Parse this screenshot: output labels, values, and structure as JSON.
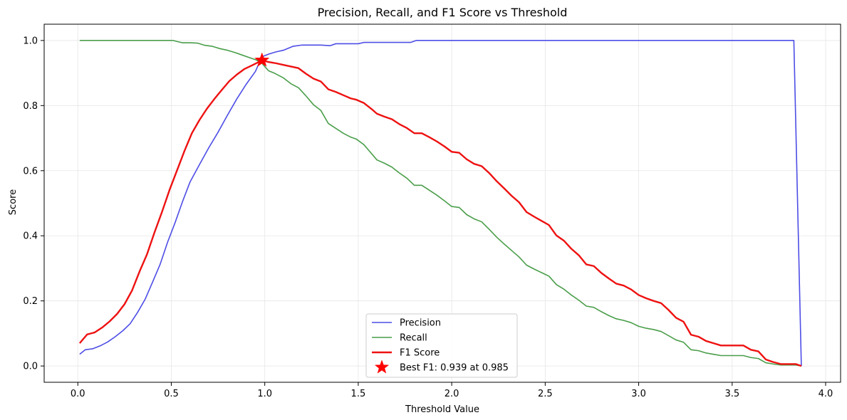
{
  "chart_data": {
    "type": "line",
    "title": "Precision, Recall, and F1 Score vs Threshold",
    "xlabel": "Threshold Value",
    "ylabel": "Score",
    "xlim": [
      -0.18,
      4.08
    ],
    "ylim": [
      -0.05,
      1.05
    ],
    "xticks": [
      {
        "value": 0.0,
        "label": "0.0"
      },
      {
        "value": 0.5,
        "label": "0.5"
      },
      {
        "value": 1.0,
        "label": "1.0"
      },
      {
        "value": 1.5,
        "label": "1.5"
      },
      {
        "value": 2.0,
        "label": "2.0"
      },
      {
        "value": 2.5,
        "label": "2.5"
      },
      {
        "value": 3.0,
        "label": "3.0"
      },
      {
        "value": 3.5,
        "label": "3.5"
      },
      {
        "value": 4.0,
        "label": "4.0"
      }
    ],
    "yticks": [
      {
        "value": 0.0,
        "label": "0.0"
      },
      {
        "value": 0.2,
        "label": "0.2"
      },
      {
        "value": 0.4,
        "label": "0.4"
      },
      {
        "value": 0.6,
        "label": "0.6"
      },
      {
        "value": 0.8,
        "label": "0.8"
      },
      {
        "value": 1.0,
        "label": "1.0"
      }
    ],
    "grid": true,
    "legend_position": "lower center",
    "series": [
      {
        "name": "Precision",
        "color": "#4d4de6",
        "linewidth": "thin",
        "points": [
          [
            0.01,
            0.036
          ],
          [
            0.04,
            0.05
          ],
          [
            0.08,
            0.053
          ],
          [
            0.12,
            0.062
          ],
          [
            0.16,
            0.074
          ],
          [
            0.2,
            0.09
          ],
          [
            0.24,
            0.108
          ],
          [
            0.28,
            0.13
          ],
          [
            0.32,
            0.165
          ],
          [
            0.36,
            0.205
          ],
          [
            0.4,
            0.258
          ],
          [
            0.44,
            0.312
          ],
          [
            0.48,
            0.38
          ],
          [
            0.52,
            0.44
          ],
          [
            0.56,
            0.505
          ],
          [
            0.6,
            0.565
          ],
          [
            0.65,
            0.618
          ],
          [
            0.7,
            0.67
          ],
          [
            0.75,
            0.718
          ],
          [
            0.8,
            0.77
          ],
          [
            0.85,
            0.82
          ],
          [
            0.9,
            0.865
          ],
          [
            0.95,
            0.905
          ],
          [
            0.985,
            0.95
          ],
          [
            1.02,
            0.958
          ],
          [
            1.06,
            0.965
          ],
          [
            1.1,
            0.97
          ],
          [
            1.15,
            0.982
          ],
          [
            1.2,
            0.986
          ],
          [
            1.3,
            0.986
          ],
          [
            1.35,
            0.984
          ],
          [
            1.38,
            0.99
          ],
          [
            1.45,
            0.99
          ],
          [
            1.5,
            0.99
          ],
          [
            1.53,
            0.994
          ],
          [
            1.6,
            0.994
          ],
          [
            1.78,
            0.994
          ],
          [
            1.81,
            1.0
          ],
          [
            2.0,
            1.0
          ],
          [
            2.5,
            1.0
          ],
          [
            3.0,
            1.0
          ],
          [
            3.5,
            1.0
          ],
          [
            3.83,
            1.0
          ],
          [
            3.87,
            0.0
          ]
        ]
      },
      {
        "name": "Recall",
        "color": "#4a9e4a",
        "linewidth": "thin",
        "points": [
          [
            0.01,
            1.0
          ],
          [
            0.3,
            1.0
          ],
          [
            0.51,
            1.0
          ],
          [
            0.53,
            0.997
          ],
          [
            0.56,
            0.993
          ],
          [
            0.6,
            0.993
          ],
          [
            0.64,
            0.992
          ],
          [
            0.68,
            0.985
          ],
          [
            0.72,
            0.982
          ],
          [
            0.76,
            0.975
          ],
          [
            0.8,
            0.97
          ],
          [
            0.84,
            0.963
          ],
          [
            0.88,
            0.955
          ],
          [
            0.92,
            0.947
          ],
          [
            0.955,
            0.94
          ],
          [
            0.985,
            0.93
          ],
          [
            1.0,
            0.92
          ],
          [
            1.02,
            0.907
          ],
          [
            1.05,
            0.9
          ],
          [
            1.09,
            0.888
          ],
          [
            1.1,
            0.885
          ],
          [
            1.14,
            0.867
          ],
          [
            1.18,
            0.855
          ],
          [
            1.22,
            0.83
          ],
          [
            1.26,
            0.803
          ],
          [
            1.3,
            0.785
          ],
          [
            1.34,
            0.745
          ],
          [
            1.38,
            0.73
          ],
          [
            1.42,
            0.715
          ],
          [
            1.46,
            0.703
          ],
          [
            1.49,
            0.697
          ],
          [
            1.53,
            0.68
          ],
          [
            1.56,
            0.66
          ],
          [
            1.6,
            0.633
          ],
          [
            1.64,
            0.623
          ],
          [
            1.68,
            0.611
          ],
          [
            1.72,
            0.593
          ],
          [
            1.76,
            0.577
          ],
          [
            1.8,
            0.555
          ],
          [
            1.84,
            0.555
          ],
          [
            1.88,
            0.54
          ],
          [
            1.92,
            0.525
          ],
          [
            1.96,
            0.508
          ],
          [
            2.0,
            0.49
          ],
          [
            2.04,
            0.487
          ],
          [
            2.08,
            0.465
          ],
          [
            2.12,
            0.452
          ],
          [
            2.16,
            0.443
          ],
          [
            2.2,
            0.42
          ],
          [
            2.24,
            0.396
          ],
          [
            2.28,
            0.375
          ],
          [
            2.32,
            0.355
          ],
          [
            2.36,
            0.335
          ],
          [
            2.4,
            0.31
          ],
          [
            2.44,
            0.298
          ],
          [
            2.48,
            0.287
          ],
          [
            2.52,
            0.276
          ],
          [
            2.56,
            0.25
          ],
          [
            2.6,
            0.236
          ],
          [
            2.64,
            0.218
          ],
          [
            2.68,
            0.202
          ],
          [
            2.72,
            0.184
          ],
          [
            2.76,
            0.18
          ],
          [
            2.8,
            0.167
          ],
          [
            2.84,
            0.155
          ],
          [
            2.88,
            0.145
          ],
          [
            2.92,
            0.14
          ],
          [
            2.96,
            0.133
          ],
          [
            3.0,
            0.122
          ],
          [
            3.04,
            0.116
          ],
          [
            3.08,
            0.112
          ],
          [
            3.12,
            0.106
          ],
          [
            3.16,
            0.093
          ],
          [
            3.2,
            0.08
          ],
          [
            3.24,
            0.073
          ],
          [
            3.28,
            0.05
          ],
          [
            3.32,
            0.047
          ],
          [
            3.36,
            0.04
          ],
          [
            3.4,
            0.036
          ],
          [
            3.44,
            0.032
          ],
          [
            3.5,
            0.032
          ],
          [
            3.56,
            0.032
          ],
          [
            3.6,
            0.026
          ],
          [
            3.64,
            0.023
          ],
          [
            3.68,
            0.01
          ],
          [
            3.72,
            0.006
          ],
          [
            3.76,
            0.003
          ],
          [
            3.8,
            0.003
          ],
          [
            3.84,
            0.003
          ],
          [
            3.87,
            0.0
          ]
        ]
      },
      {
        "name": "F1 Score",
        "color": "#ee1111",
        "linewidth": "thick",
        "points": [
          [
            0.01,
            0.07
          ],
          [
            0.05,
            0.097
          ],
          [
            0.09,
            0.103
          ],
          [
            0.13,
            0.118
          ],
          [
            0.17,
            0.137
          ],
          [
            0.21,
            0.16
          ],
          [
            0.25,
            0.19
          ],
          [
            0.29,
            0.232
          ],
          [
            0.33,
            0.29
          ],
          [
            0.37,
            0.343
          ],
          [
            0.41,
            0.41
          ],
          [
            0.45,
            0.473
          ],
          [
            0.49,
            0.54
          ],
          [
            0.53,
            0.6
          ],
          [
            0.57,
            0.66
          ],
          [
            0.61,
            0.715
          ],
          [
            0.65,
            0.755
          ],
          [
            0.69,
            0.79
          ],
          [
            0.73,
            0.82
          ],
          [
            0.77,
            0.848
          ],
          [
            0.81,
            0.875
          ],
          [
            0.85,
            0.895
          ],
          [
            0.89,
            0.912
          ],
          [
            0.93,
            0.923
          ],
          [
            0.985,
            0.939
          ],
          [
            1.02,
            0.934
          ],
          [
            1.06,
            0.93
          ],
          [
            1.1,
            0.925
          ],
          [
            1.14,
            0.92
          ],
          [
            1.18,
            0.915
          ],
          [
            1.22,
            0.898
          ],
          [
            1.26,
            0.883
          ],
          [
            1.3,
            0.874
          ],
          [
            1.34,
            0.85
          ],
          [
            1.38,
            0.842
          ],
          [
            1.42,
            0.832
          ],
          [
            1.46,
            0.822
          ],
          [
            1.49,
            0.818
          ],
          [
            1.53,
            0.808
          ],
          [
            1.57,
            0.79
          ],
          [
            1.6,
            0.775
          ],
          [
            1.64,
            0.766
          ],
          [
            1.68,
            0.758
          ],
          [
            1.72,
            0.743
          ],
          [
            1.76,
            0.731
          ],
          [
            1.8,
            0.715
          ],
          [
            1.84,
            0.715
          ],
          [
            1.88,
            0.703
          ],
          [
            1.92,
            0.69
          ],
          [
            1.96,
            0.675
          ],
          [
            2.0,
            0.658
          ],
          [
            2.04,
            0.655
          ],
          [
            2.08,
            0.635
          ],
          [
            2.12,
            0.621
          ],
          [
            2.16,
            0.614
          ],
          [
            2.2,
            0.593
          ],
          [
            2.24,
            0.568
          ],
          [
            2.28,
            0.546
          ],
          [
            2.32,
            0.523
          ],
          [
            2.36,
            0.503
          ],
          [
            2.4,
            0.473
          ],
          [
            2.44,
            0.459
          ],
          [
            2.48,
            0.446
          ],
          [
            2.52,
            0.433
          ],
          [
            2.56,
            0.401
          ],
          [
            2.6,
            0.385
          ],
          [
            2.64,
            0.36
          ],
          [
            2.68,
            0.34
          ],
          [
            2.72,
            0.312
          ],
          [
            2.76,
            0.307
          ],
          [
            2.8,
            0.286
          ],
          [
            2.84,
            0.269
          ],
          [
            2.88,
            0.253
          ],
          [
            2.92,
            0.247
          ],
          [
            2.96,
            0.235
          ],
          [
            3.0,
            0.218
          ],
          [
            3.04,
            0.208
          ],
          [
            3.08,
            0.2
          ],
          [
            3.12,
            0.193
          ],
          [
            3.16,
            0.172
          ],
          [
            3.2,
            0.148
          ],
          [
            3.24,
            0.136
          ],
          [
            3.28,
            0.096
          ],
          [
            3.32,
            0.09
          ],
          [
            3.36,
            0.077
          ],
          [
            3.4,
            0.07
          ],
          [
            3.44,
            0.063
          ],
          [
            3.5,
            0.063
          ],
          [
            3.56,
            0.063
          ],
          [
            3.6,
            0.05
          ],
          [
            3.64,
            0.045
          ],
          [
            3.68,
            0.02
          ],
          [
            3.72,
            0.012
          ],
          [
            3.76,
            0.006
          ],
          [
            3.8,
            0.006
          ],
          [
            3.84,
            0.006
          ],
          [
            3.87,
            0.0
          ]
        ]
      }
    ],
    "annotations": [
      {
        "type": "star-marker",
        "name": "Best F1: 0.939 at 0.985",
        "x": 0.985,
        "y": 0.939,
        "color": "#ff0000"
      }
    ],
    "legend": [
      {
        "label": "Precision",
        "color": "#4d4de6",
        "kind": "line"
      },
      {
        "label": "Recall",
        "color": "#4a9e4a",
        "kind": "line"
      },
      {
        "label": "F1 Score",
        "color": "#ee1111",
        "kind": "line-thick"
      },
      {
        "label": "Best F1: 0.939 at 0.985",
        "color": "#ff0000",
        "kind": "star"
      }
    ]
  }
}
